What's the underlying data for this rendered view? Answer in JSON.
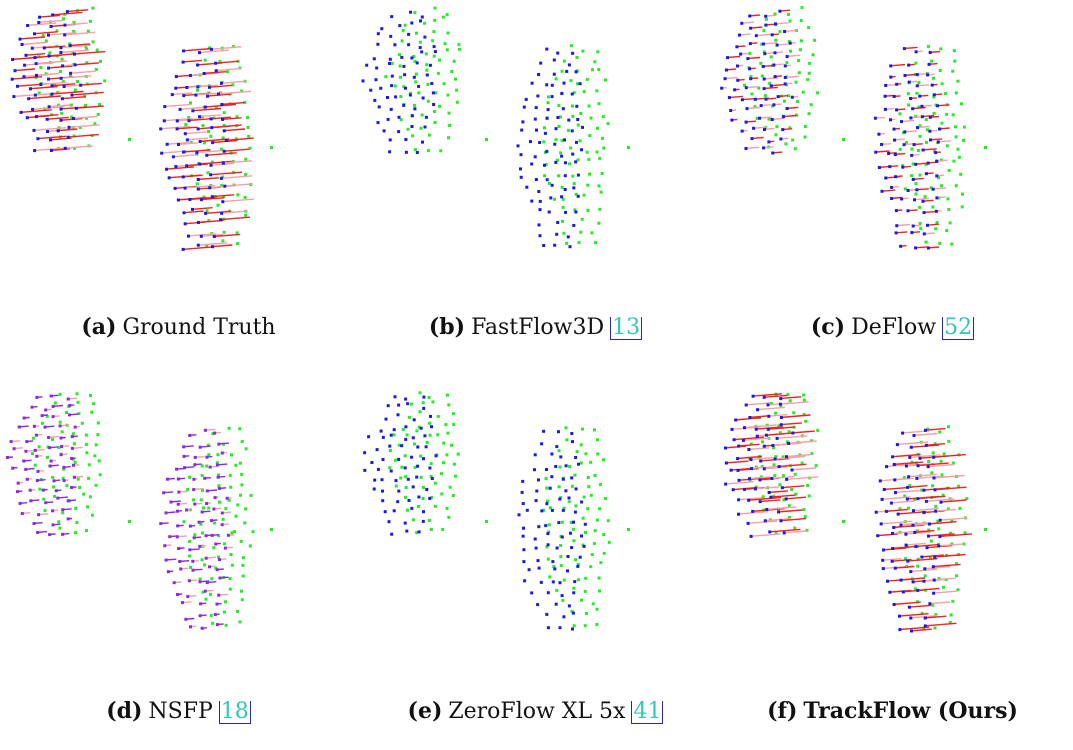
{
  "figure": {
    "panels": [
      {
        "label": "(a)",
        "name": "Ground Truth",
        "citation": "",
        "bold": false,
        "mode": "gt"
      },
      {
        "label": "(b)",
        "name": "FastFlow3D",
        "citation": "13",
        "bold": false,
        "mode": "none"
      },
      {
        "label": "(c)",
        "name": "DeFlow",
        "citation": "52",
        "bold": false,
        "mode": "partial"
      },
      {
        "label": "(d)",
        "name": "NSFP",
        "citation": "18",
        "bold": false,
        "mode": "nsfp"
      },
      {
        "label": "(e)",
        "name": "ZeroFlow XL 5x",
        "citation": "41",
        "bold": false,
        "mode": "none"
      },
      {
        "label": "(f)",
        "name": "TrackFlow (Ours)",
        "citation": "",
        "bold": true,
        "mode": "gt"
      }
    ]
  },
  "colors": {
    "source_points": "#1a1ae6",
    "target_points": "#22ee22",
    "flow_vectors": "#ee2222",
    "flow_vectors_light": "#f4a0a8",
    "predicted_points": "#8a2be2",
    "citation_text": "#30c6b8",
    "citation_box": "#2a2aa0"
  }
}
